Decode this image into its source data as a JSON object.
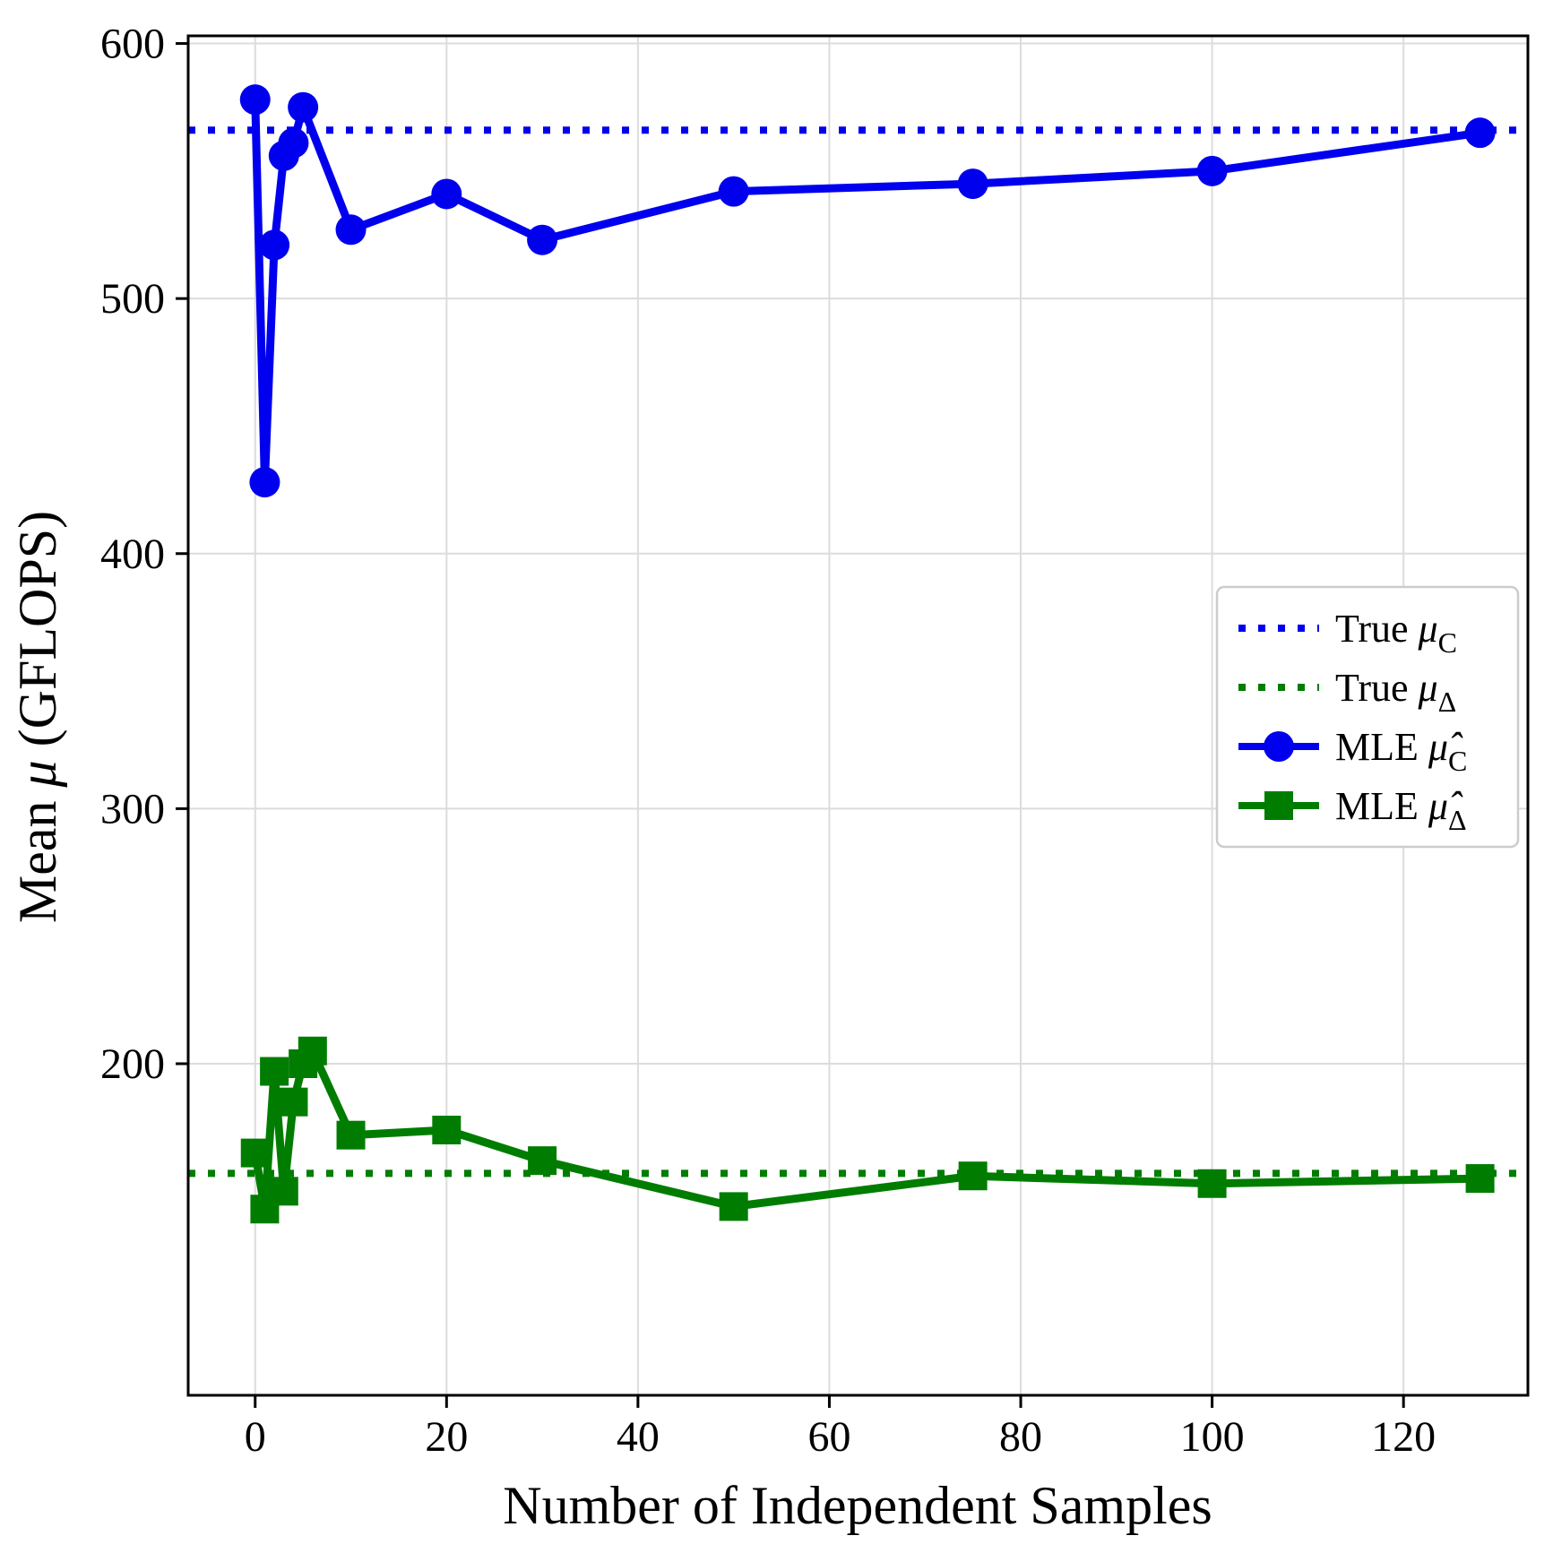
{
  "chart_data": {
    "type": "line",
    "title": "",
    "xlabel": "Number of Independent Samples",
    "ylabel_parts": {
      "prefix": "Mean ",
      "symbol": "μ",
      "suffix": " (GFLOPS)"
    },
    "xlim": [
      -7,
      133
    ],
    "ylim": [
      70,
      603
    ],
    "x_ticks": [
      0,
      20,
      40,
      60,
      80,
      100,
      120
    ],
    "y_ticks": [
      200,
      300,
      400,
      500,
      600
    ],
    "grid": true,
    "legend_position": "center right",
    "reference_lines": [
      {
        "name": "true-mu-C",
        "value": 566,
        "color": "#0000ee",
        "style": "dotted",
        "label": {
          "prefix": "True ",
          "symbol": "μ",
          "sub": "C"
        }
      },
      {
        "name": "true-mu-Delta",
        "value": 157,
        "color": "#007d00",
        "style": "dotted",
        "label": {
          "prefix": "True ",
          "symbol": "μ",
          "sub": "Δ"
        }
      }
    ],
    "series": [
      {
        "name": "mle-mu-C",
        "color": "#0000ee",
        "marker": "circle",
        "label": {
          "prefix": "MLE ",
          "symbol": "μ̂",
          "sub": "C"
        },
        "x": [
          0,
          1,
          2,
          3,
          4,
          5,
          10,
          20,
          30,
          50,
          75,
          100,
          128
        ],
        "y": [
          578,
          428,
          521,
          556,
          561,
          575,
          527,
          541,
          523,
          542,
          545,
          550,
          565
        ]
      },
      {
        "name": "mle-mu-Delta",
        "color": "#007d00",
        "marker": "square",
        "label": {
          "prefix": "MLE ",
          "symbol": "μ̂",
          "sub": "Δ"
        },
        "x": [
          0,
          1,
          2,
          3,
          4,
          5,
          6,
          10,
          20,
          30,
          50,
          75,
          100,
          128
        ],
        "y": [
          165,
          143,
          197,
          150,
          185,
          200,
          205,
          172,
          174,
          162,
          144,
          156,
          153,
          155
        ]
      }
    ]
  }
}
